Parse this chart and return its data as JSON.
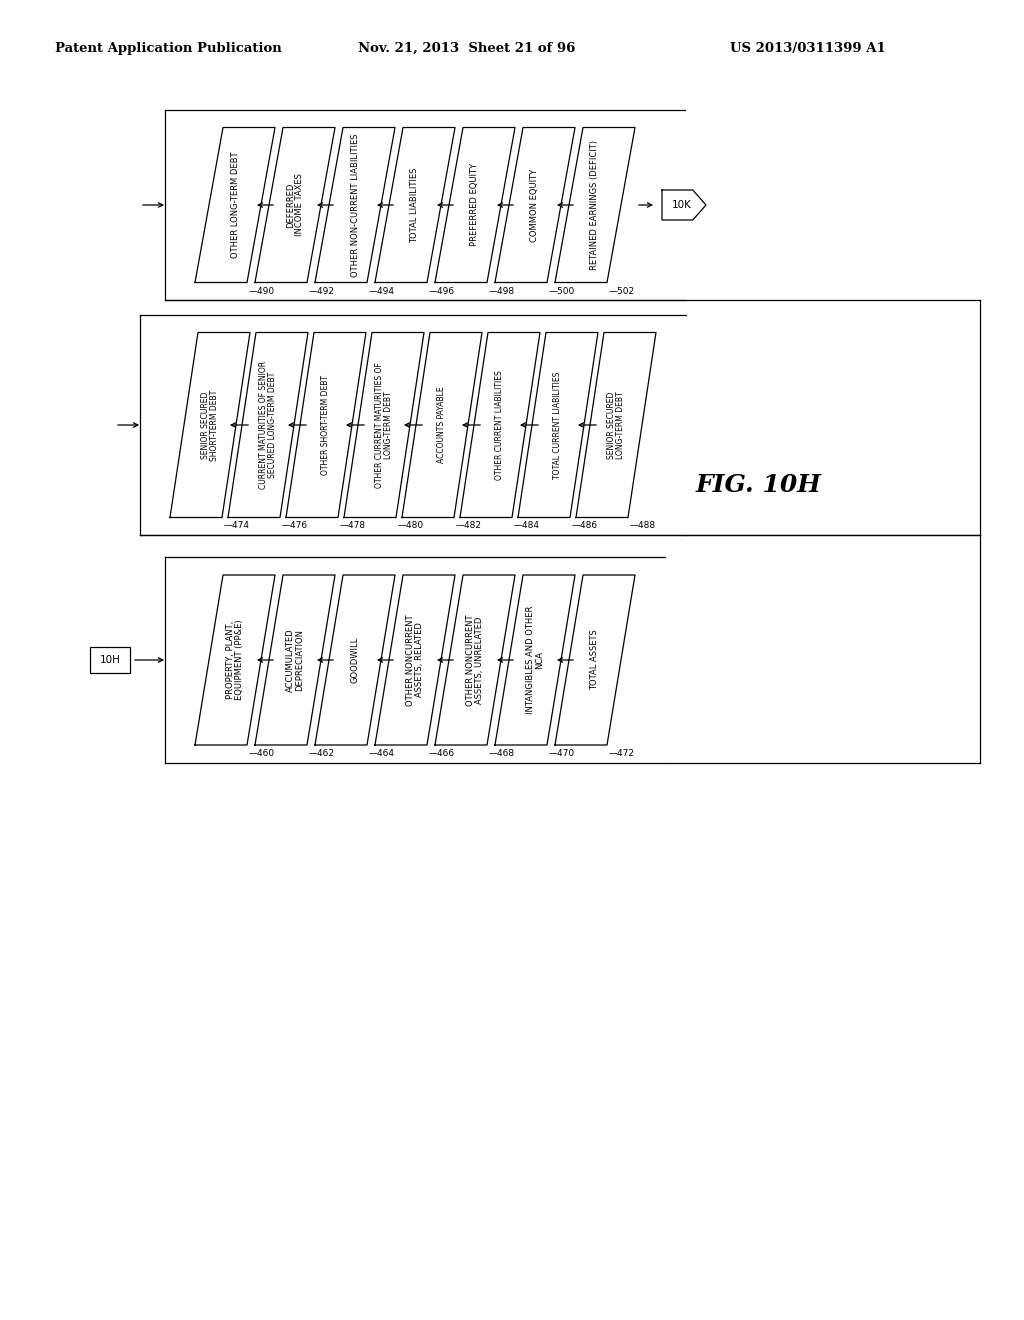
{
  "header_left": "Patent Application Publication",
  "header_mid": "Nov. 21, 2013  Sheet 21 of 96",
  "header_right": "US 2013/0311399 A1",
  "fig_label": "FIG. 10H",
  "bg_color": "#ffffff",
  "row1": {
    "boxes": [
      {
        "text": "OTHER LONG-TERM DEBT",
        "number": "490"
      },
      {
        "text": "DEFERRED\nINCOME TAXES",
        "number": "492"
      },
      {
        "text": "OTHER NON-CURRENT LIABILITIES",
        "number": "494"
      },
      {
        "text": "TOTAL LIABILITIES",
        "number": "496"
      },
      {
        "text": "PREFERRED EQUITY",
        "number": "498"
      },
      {
        "text": "COMMON EQUITY",
        "number": "500"
      },
      {
        "text": "RETAINED EARNINGS (DEFICIT)",
        "number": "502"
      }
    ],
    "end_node": "10K"
  },
  "row2": {
    "boxes": [
      {
        "text": "SENIOR SECURED\nSHORT-TERM DEBT",
        "number": "474"
      },
      {
        "text": "CURRENT MATURITIES OF SENIOR\nSECURED LONG-TERM DEBT",
        "number": "476"
      },
      {
        "text": "OTHER SHORT-TERM DEBT",
        "number": "478"
      },
      {
        "text": "OTHER CURRENT MATURITIES OF\nLONG-TERM DEBT",
        "number": "480"
      },
      {
        "text": "ACCOUNTS PAYABLE",
        "number": "482"
      },
      {
        "text": "OTHER CURRENT LIABILITIES",
        "number": "484"
      },
      {
        "text": "TOTAL CURRENT LIABILITIES",
        "number": "486"
      },
      {
        "text": "SENIOR SECURED\nLONG-TERM DEBT",
        "number": "488"
      }
    ]
  },
  "row3": {
    "start_node": "10H",
    "boxes": [
      {
        "text": "PROPERTY, PLANT,\nEQUIPMENT (PP&E)",
        "number": "460"
      },
      {
        "text": "ACCUMULATED\nDEPRECIATION",
        "number": "462"
      },
      {
        "text": "GOODWILL",
        "number": "464"
      },
      {
        "text": "OTHER NONCURRENT\nASSETS, RELATED",
        "number": "466"
      },
      {
        "text": "OTHER NONCURRENT\nASSETS, UNRELATED",
        "number": "468"
      },
      {
        "text": "INTANGIBLES AND OTHER\nNCA",
        "number": "470"
      },
      {
        "text": "TOTAL ASSETS",
        "number": "472"
      }
    ]
  }
}
